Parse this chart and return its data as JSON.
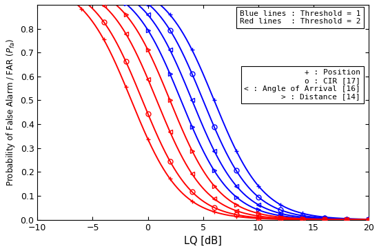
{
  "xlabel": "LQ [dB]",
  "ylabel": "Probability of False Alarm / FAR (P_{fa})",
  "xlim": [
    -10,
    20
  ],
  "ylim": [
    0,
    0.9
  ],
  "x_ticks": [
    -10,
    -5,
    0,
    5,
    10,
    15,
    20
  ],
  "y_ticks": [
    0.0,
    0.1,
    0.2,
    0.3,
    0.4,
    0.5,
    0.6,
    0.7,
    0.8
  ],
  "legend1_lines": [
    "Blue lines : Threshold = 1",
    "Red lines  : Threshold = 2"
  ],
  "legend2_lines": [
    "+ : Position",
    "o : CIR [17]",
    "< : Angle of Arrival [16]",
    "> : Distance [14]"
  ],
  "curve_params": [
    {
      "color": "blue",
      "marker": "+",
      "x0": 6.0,
      "k": 0.45
    },
    {
      "color": "blue",
      "marker": "o",
      "x0": 5.0,
      "k": 0.45
    },
    {
      "color": "blue",
      "marker": "<",
      "x0": 4.0,
      "k": 0.45
    },
    {
      "color": "blue",
      "marker": ">",
      "x0": 3.0,
      "k": 0.45
    },
    {
      "color": "red",
      "marker": "+",
      "x0": -1.5,
      "k": 0.45
    },
    {
      "color": "red",
      "marker": "o",
      "x0": -0.5,
      "k": 0.45
    },
    {
      "color": "red",
      "marker": "<",
      "x0": 0.8,
      "k": 0.45
    },
    {
      "color": "red",
      "marker": ">",
      "x0": 2.0,
      "k": 0.45
    }
  ],
  "linewidth": 1.4,
  "markersize": 5,
  "marker_every": 2,
  "background_color": "#ffffff"
}
